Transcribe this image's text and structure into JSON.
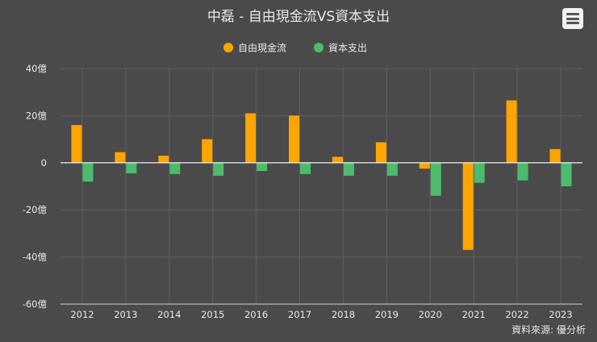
{
  "title": "中磊 - 自由現金流VS資本支出",
  "source": "資料來源: 優分析",
  "menu_icon": "hamburger-menu-icon",
  "colors": {
    "fcf": "#ffa500",
    "capex": "#4cbb6c",
    "grid": "#5f5f5f",
    "zero_line": "#ffffff",
    "text": "#e8e8e8"
  },
  "chart_data": {
    "type": "bar",
    "title": "中磊 - 自由現金流VS資本支出",
    "categories": [
      "2012",
      "2013",
      "2014",
      "2015",
      "2016",
      "2017",
      "2018",
      "2019",
      "2020",
      "2021",
      "2022",
      "2023"
    ],
    "series": [
      {
        "name": "自由現金流",
        "values": [
          16,
          4.5,
          3,
          10,
          21,
          20,
          2.5,
          8.7,
          -2.5,
          -37,
          26.5,
          5.8
        ]
      },
      {
        "name": "資本支出",
        "values": [
          -8,
          -4.5,
          -4.8,
          -5.5,
          -3.5,
          -4.8,
          -5.5,
          -5.5,
          -14,
          -8.5,
          -7.5,
          -10
        ]
      }
    ],
    "yticks": [
      "40億",
      "20億",
      "0",
      "-20億",
      "-40億",
      "-60億"
    ],
    "ylim": [
      -60,
      40
    ],
    "grid": true,
    "legend_position": "top-center",
    "xlabel": "",
    "ylabel": ""
  }
}
